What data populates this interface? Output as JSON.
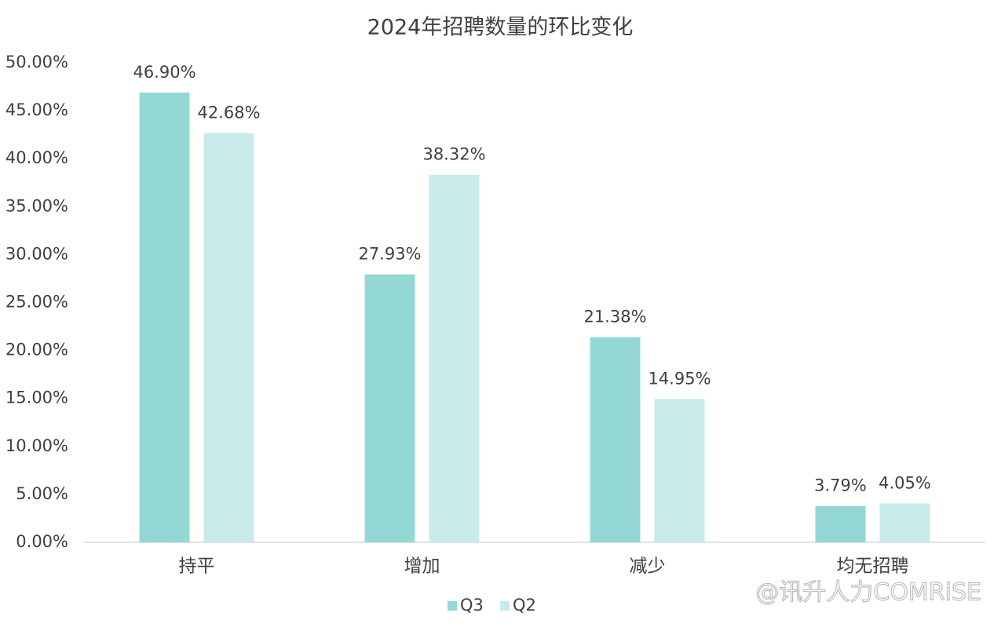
{
  "chart_data": {
    "type": "bar",
    "title": "2024年招聘数量的环比变化",
    "categories": [
      "持平",
      "增加",
      "减少",
      "均无招聘"
    ],
    "series": [
      {
        "name": "Q3",
        "color": "#93d8d5",
        "values": [
          46.9,
          27.93,
          21.38,
          3.79
        ],
        "value_labels": [
          "46.90%",
          "27.93%",
          "21.38%",
          "3.79%"
        ]
      },
      {
        "name": "Q2",
        "color": "#c8eaea",
        "values": [
          42.68,
          38.32,
          14.95,
          4.05
        ],
        "value_labels": [
          "42.68%",
          "38.32%",
          "14.95%",
          "4.05%"
        ]
      }
    ],
    "ylim": [
      0,
      50
    ],
    "yticks": [
      {
        "value": 0,
        "label": "0.00%"
      },
      {
        "value": 5,
        "label": "5.00%"
      },
      {
        "value": 10,
        "label": "10.00%"
      },
      {
        "value": 15,
        "label": "15.00%"
      },
      {
        "value": 20,
        "label": "20.00%"
      },
      {
        "value": 25,
        "label": "25.00%"
      },
      {
        "value": 30,
        "label": "30.00%"
      },
      {
        "value": 35,
        "label": "35.00%"
      },
      {
        "value": 40,
        "label": "40.00%"
      },
      {
        "value": 45,
        "label": "45.00%"
      },
      {
        "value": 50,
        "label": "50.00%"
      }
    ],
    "grid": false,
    "legend": "bottom",
    "watermark": "@讯升人力COMRiSE"
  }
}
